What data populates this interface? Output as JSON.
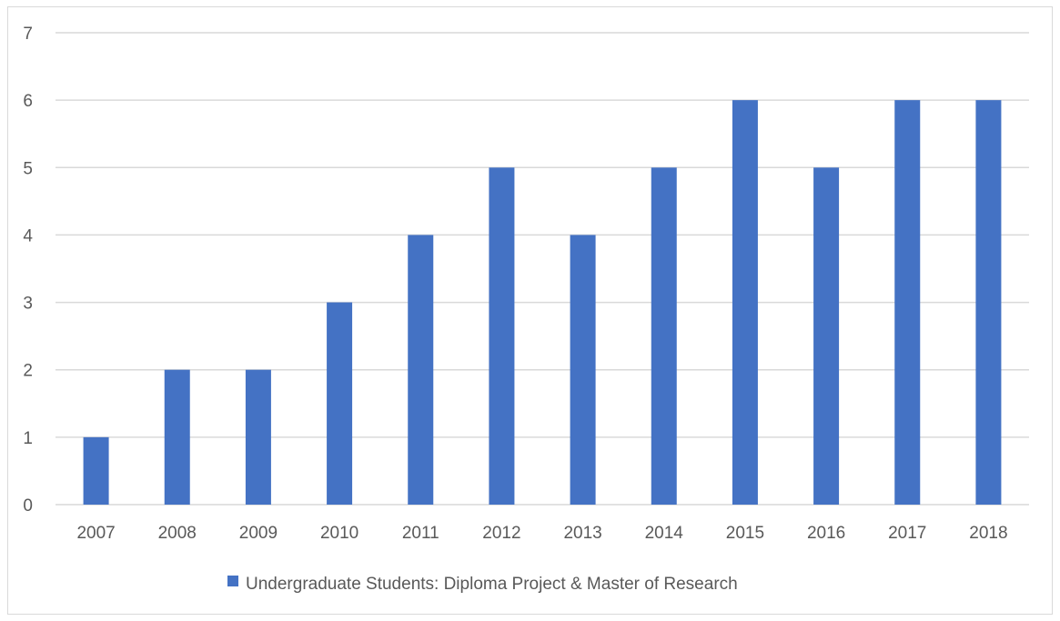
{
  "chart_data": {
    "type": "bar",
    "categories": [
      "2007",
      "2008",
      "2009",
      "2010",
      "2011",
      "2012",
      "2013",
      "2014",
      "2015",
      "2016",
      "2017",
      "2018"
    ],
    "series": [
      {
        "name": "Undergraduate Students: Diploma Project & Master of Research",
        "values": [
          1,
          2,
          2,
          3,
          4,
          5,
          4,
          5,
          6,
          5,
          6,
          6
        ],
        "color": "#4472c4"
      }
    ],
    "ylim": [
      0,
      7
    ],
    "yticks": [
      "0",
      "1",
      "2",
      "3",
      "4",
      "5",
      "6",
      "7"
    ],
    "grid": true,
    "legend_position": "bottom",
    "gridline_color": "#d9d9d9",
    "text_color": "#595959"
  }
}
